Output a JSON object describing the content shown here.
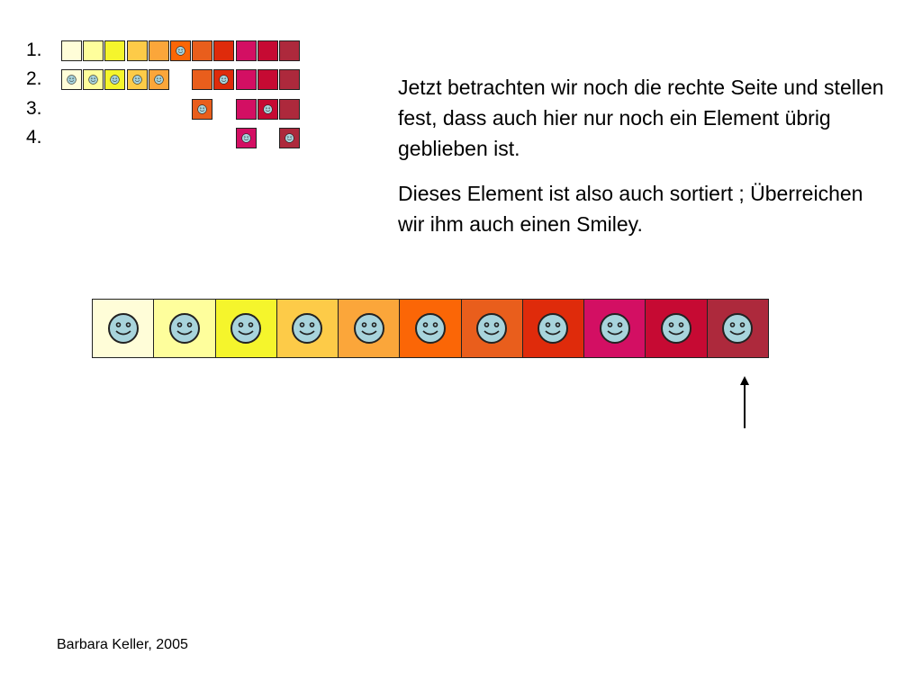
{
  "colors": [
    "#fffdd8",
    "#fefe9c",
    "#f5f52c",
    "#fdcb48",
    "#fba63a",
    "#fb6606",
    "#e95e1c",
    "#df2b0b",
    "#d30f63",
    "#c60a33",
    "#ad293c"
  ],
  "smiley_color": "#a8d4dc",
  "steps": [
    {
      "label": "1.",
      "cells": [
        0,
        1,
        2,
        3,
        4,
        5,
        6,
        7,
        8,
        9,
        10
      ],
      "smiley": [
        5
      ]
    },
    {
      "label": "2.",
      "cells": [
        0,
        1,
        2,
        3,
        4,
        6,
        7,
        8,
        9,
        10
      ],
      "smiley": [
        0,
        1,
        2,
        3,
        4,
        7
      ]
    },
    {
      "label": "3.",
      "cells": [
        6,
        8,
        9,
        10
      ],
      "smiley": [
        6,
        9
      ]
    },
    {
      "label": "4.",
      "cells": [
        8,
        10
      ],
      "smiley": [
        8,
        10
      ]
    }
  ],
  "text": {
    "paragraph_1": "Jetzt betrachten wir noch die rechte Seite und stellen fest, dass auch hier nur noch ein Element übrig geblieben ist.",
    "paragraph_2": "Dieses Element ist also auch sortiert ; Überreichen wir ihm auch einen Smiley."
  },
  "final_row": {
    "smiley": [
      0,
      1,
      2,
      3,
      4,
      5,
      6,
      7,
      8,
      9,
      10
    ],
    "pointer_index": 10
  },
  "footer": "Barbara Keller, 2005"
}
